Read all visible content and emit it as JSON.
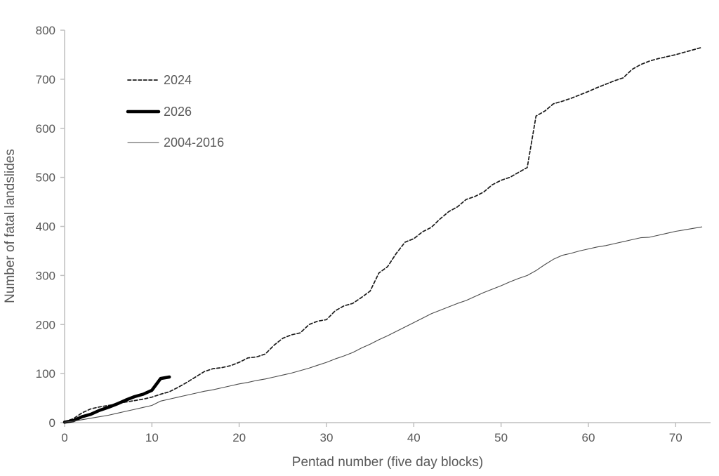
{
  "chart_data": {
    "type": "line",
    "title": "",
    "xlabel": "Pentad number (five day blocks)",
    "ylabel": "Number of fatal landslides",
    "xlim": [
      0,
      74
    ],
    "ylim": [
      0,
      800
    ],
    "x_ticks": [
      0,
      10,
      20,
      30,
      40,
      50,
      60,
      70
    ],
    "y_ticks": [
      0,
      100,
      200,
      300,
      400,
      500,
      600,
      700,
      800
    ],
    "grid": false,
    "legend_position": "upper-left-inside",
    "axis_color": "#bfbfbf",
    "text_color": "#595959",
    "series": [
      {
        "name": "2024",
        "line_style": "dashed",
        "stroke_width": 1.7,
        "color": "#1a1a1a",
        "x": [
          0,
          1,
          2,
          3,
          4,
          5,
          6,
          7,
          8,
          9,
          10,
          11,
          12,
          13,
          14,
          15,
          16,
          17,
          18,
          19,
          20,
          21,
          22,
          23,
          24,
          25,
          26,
          27,
          28,
          29,
          30,
          31,
          32,
          33,
          34,
          35,
          36,
          37,
          38,
          39,
          40,
          41,
          42,
          43,
          44,
          45,
          46,
          47,
          48,
          49,
          50,
          51,
          52,
          53,
          54,
          55,
          56,
          57,
          58,
          59,
          60,
          61,
          62,
          63,
          64,
          65,
          66,
          67,
          68,
          69,
          70,
          71,
          72,
          73
        ],
        "values": [
          2,
          8,
          20,
          28,
          32,
          35,
          38,
          42,
          45,
          48,
          52,
          58,
          63,
          72,
          82,
          93,
          104,
          110,
          112,
          116,
          123,
          132,
          134,
          140,
          158,
          172,
          179,
          183,
          200,
          207,
          210,
          228,
          238,
          243,
          255,
          268,
          305,
          318,
          345,
          368,
          375,
          389,
          398,
          415,
          430,
          440,
          455,
          461,
          470,
          485,
          494,
          500,
          510,
          520,
          625,
          635,
          650,
          655,
          661,
          668,
          675,
          683,
          690,
          697,
          703,
          720,
          730,
          737,
          742,
          746,
          750,
          755,
          760,
          765
        ]
      },
      {
        "name": "2026",
        "line_style": "solid",
        "stroke_width": 4.5,
        "color": "#000000",
        "x": [
          0,
          1,
          2,
          3,
          4,
          5,
          6,
          7,
          8,
          9,
          10,
          11,
          12
        ],
        "values": [
          1,
          4,
          12,
          17,
          25,
          31,
          38,
          46,
          53,
          58,
          66,
          90,
          93
        ]
      },
      {
        "name": "2004-2016",
        "line_style": "solid",
        "stroke_width": 1.1,
        "color": "#4a4a4a",
        "x": [
          0,
          1,
          2,
          3,
          4,
          5,
          6,
          7,
          8,
          9,
          10,
          11,
          12,
          13,
          14,
          15,
          16,
          17,
          18,
          19,
          20,
          21,
          22,
          23,
          24,
          25,
          26,
          27,
          28,
          29,
          30,
          31,
          32,
          33,
          34,
          35,
          36,
          37,
          38,
          39,
          40,
          41,
          42,
          43,
          44,
          45,
          46,
          47,
          48,
          49,
          50,
          51,
          52,
          53,
          54,
          55,
          56,
          57,
          58,
          59,
          60,
          61,
          62,
          63,
          64,
          65,
          66,
          67,
          68,
          69,
          70,
          71,
          72,
          73
        ],
        "values": [
          1,
          3,
          6,
          9,
          12,
          15,
          19,
          23,
          27,
          31,
          35,
          44,
          48,
          52,
          56,
          60,
          64,
          67,
          71,
          75,
          79,
          82,
          86,
          89,
          93,
          97,
          101,
          106,
          111,
          117,
          123,
          130,
          136,
          143,
          152,
          160,
          169,
          177,
          186,
          195,
          204,
          213,
          222,
          229,
          236,
          243,
          249,
          257,
          265,
          272,
          279,
          287,
          294,
          300,
          310,
          322,
          333,
          341,
          345,
          350,
          354,
          358,
          361,
          365,
          369,
          373,
          377,
          378,
          382,
          386,
          390,
          393,
          396,
          399
        ]
      }
    ]
  }
}
